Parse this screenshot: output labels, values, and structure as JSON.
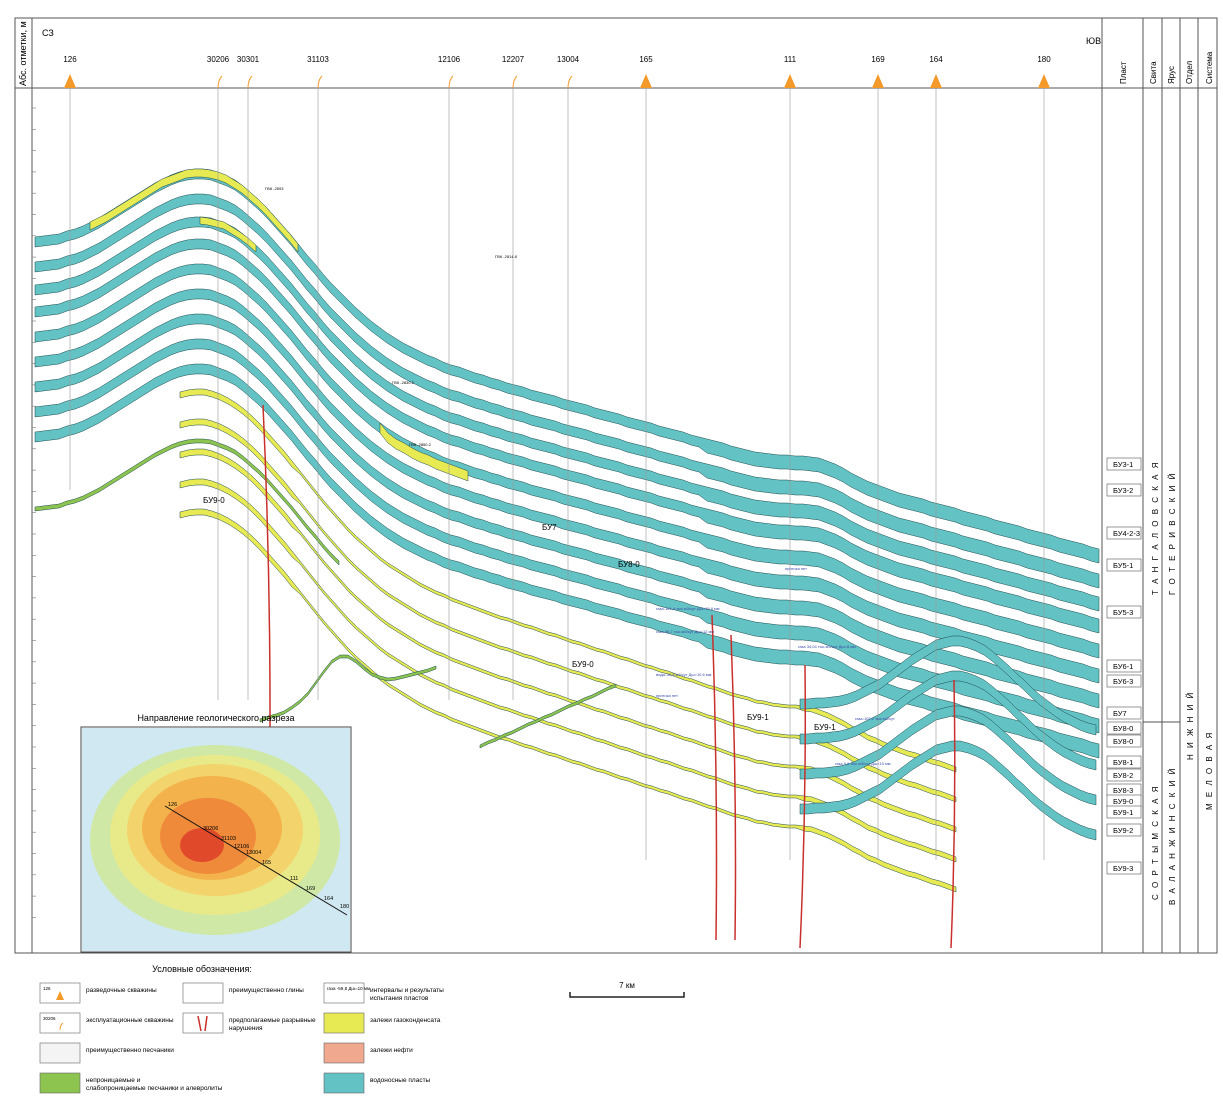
{
  "header": {
    "axis_title": "Абс. отметки, м",
    "left_dir": "СЗ",
    "right_dir": "ЮВ",
    "col_headers": [
      "Пласт",
      "Свита",
      "Ярус",
      "Отдел",
      "Система"
    ]
  },
  "wells": [
    {
      "id": "126",
      "kind": "exploration"
    },
    {
      "id": "30206",
      "kind": "production"
    },
    {
      "id": "30301",
      "kind": "production"
    },
    {
      "id": "31103",
      "kind": "production"
    },
    {
      "id": "12106",
      "kind": "production"
    },
    {
      "id": "12207",
      "kind": "production"
    },
    {
      "id": "13004",
      "kind": "production"
    },
    {
      "id": "165",
      "kind": "exploration"
    },
    {
      "id": "111",
      "kind": "exploration"
    },
    {
      "id": "169",
      "kind": "exploration"
    },
    {
      "id": "164",
      "kind": "exploration"
    },
    {
      "id": "180",
      "kind": "exploration"
    }
  ],
  "plasts": [
    "БУ3-1",
    "БУ3-2",
    "БУ4-2-3",
    "БУ5-1",
    "БУ5-3",
    "БУ6-1",
    "БУ6-3",
    "БУ7",
    "БУ8-0",
    "БУ8-0",
    "БУ8-1",
    "БУ8-2",
    "БУ8-3",
    "БУ9-0",
    "БУ9-1",
    "БУ9-2",
    "БУ9-3"
  ],
  "stratigraphy": {
    "svita_upper": "Т А Н Г А Л О В С К А Я",
    "svita_lower": "С О Р Т Ы М С К А Я",
    "yarus_upper": "Г О Т Е Р И В С К И Й",
    "yarus_lower": "В А Л А Н Ж И Н С К И Й",
    "otdel": "Н И Ж Н И Й",
    "sistema": "М Е Л О В А Я"
  },
  "section_labels": [
    "БУ9-0",
    "БУ7",
    "БУ8-0",
    "БУ9-0",
    "БУ9-1",
    "БУ9-1"
  ],
  "annotations": {
    "gvk": [
      "ГВК -2693",
      "ГВК -2814.8",
      "ГВК -2830.2",
      "ГВК -2850.2"
    ],
    "tests": [
      "газа-161,4 тыс.м3/сут Дш=15,8 мм",
      "газа-56,7 тыс.м3/сут Дш=12 мм",
      "газа 34,04 тыс.м3/сут Дш=8 мм",
      "воды-30,8 м3/сут Дш=10,6 мм",
      "притока нет",
      "притока нет",
      "газа-102,2 тыс.м3/сут",
      "газа 5,9 тыс.м3/сут Дш=10 мм"
    ]
  },
  "inset": {
    "title": "Направление геологического разреза",
    "well_labels": [
      "126",
      "30206",
      "31103",
      "12106",
      "13004",
      "165",
      "111",
      "169",
      "164",
      "180"
    ]
  },
  "legend": {
    "title": "Условные обозначения:",
    "items": [
      {
        "key": "exploration",
        "sample": "126",
        "label": "разведочные скважины"
      },
      {
        "key": "production",
        "sample": "30206",
        "label": "эксплуатационные скважины"
      },
      {
        "key": "sand",
        "label": "преимущественно песчаники"
      },
      {
        "key": "tight",
        "label": "непроницаемые и слабопроницаемые песчаники и алевролиты"
      },
      {
        "key": "clay",
        "label": "преимущественно глины"
      },
      {
        "key": "faults",
        "label": "предполагаемые разрывные нарушения"
      },
      {
        "key": "tests",
        "sample": "газа -59,8 Дш=10 мм",
        "label": "интервалы и результаты испытания пластов"
      },
      {
        "key": "gas",
        "label": "залежи газоконденсата"
      },
      {
        "key": "oil",
        "label": "залежи нефти"
      },
      {
        "key": "water",
        "label": "водоносные пласты"
      }
    ]
  },
  "scale": {
    "label": "7 км"
  },
  "colors": {
    "water": "#63c2c4",
    "gas": "#e8ea53",
    "oil": "#f0a98f",
    "tight": "#8cc44f",
    "fault": "#c9302c",
    "well_marker": "#f39a2b",
    "grid": "#888888"
  }
}
